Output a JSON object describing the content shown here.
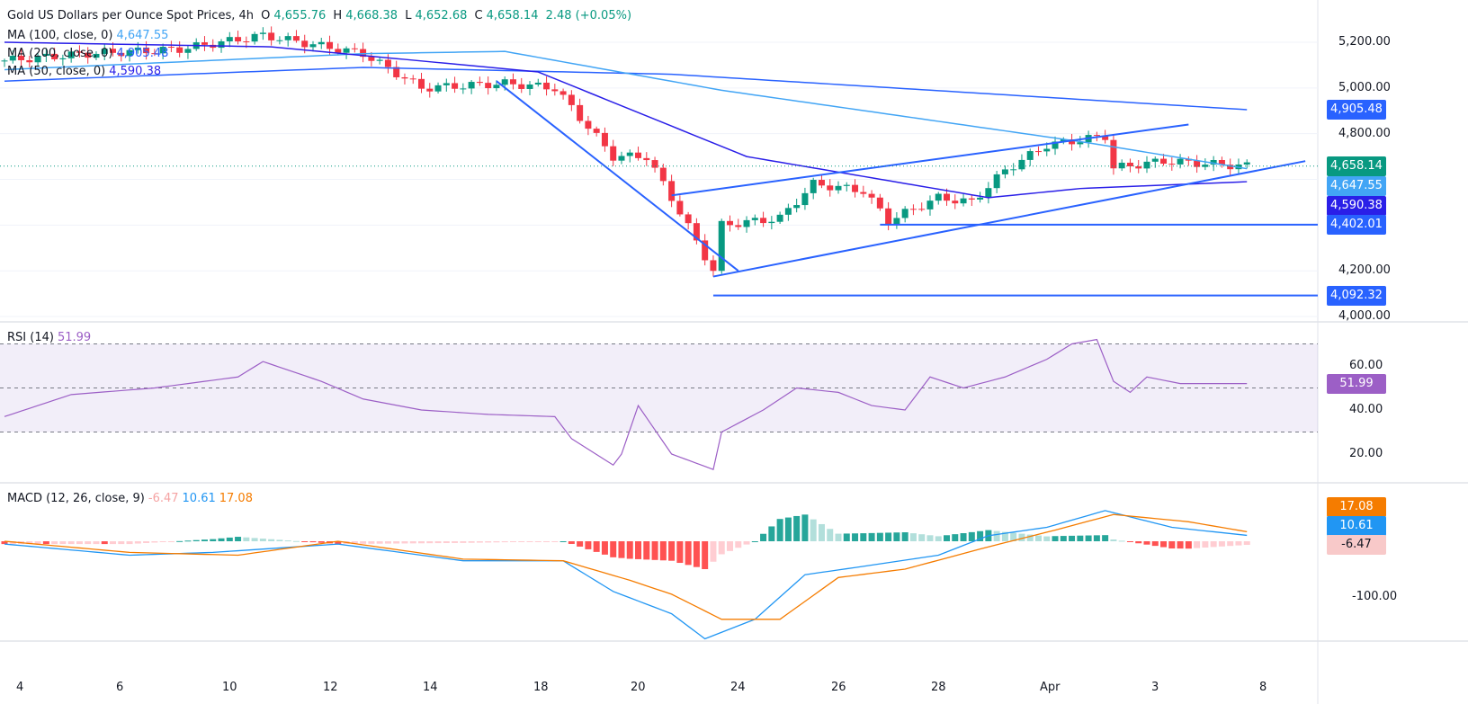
{
  "header": {
    "title": "Gold US Dollars per Ounce Spot Prices, 4h",
    "o_label": "O",
    "o": "4,655.76",
    "h_label": "H",
    "h": "4,668.38",
    "l_label": "L",
    "l": "4,652.68",
    "c_label": "C",
    "c": "4,658.14",
    "change": "2.48 (+0.05%)"
  },
  "ma_legends": [
    {
      "label": "MA (100, close, 0)",
      "value": "4,647.55",
      "color": "#42a5f5"
    },
    {
      "label": "MA (200, close, 0)",
      "value": "4,905.48",
      "color": "#2962ff"
    },
    {
      "label": "MA (50, close, 0)",
      "value": "4,590.38",
      "color": "#2a1fe8"
    }
  ],
  "rsi_legend": {
    "label": "RSI (14)",
    "value": "51.99"
  },
  "macd_legend": {
    "label": "MACD (12, 26, close, 9)",
    "hist": "-6.47",
    "macd": "10.61",
    "signal": "17.08"
  },
  "chart_data": {
    "type": "candlestick",
    "price_axis": {
      "ticks": [
        "5,200.00",
        "5,000.00",
        "4,800.00",
        "4,200.00",
        "4,000.00"
      ],
      "tick_values": [
        5200,
        5000,
        4800,
        4200,
        4000
      ],
      "range": [
        4000,
        5200
      ]
    },
    "price_labels": [
      {
        "text": "4,905.48",
        "value": 4905.48,
        "color": "#2962ff"
      },
      {
        "text": "4,658.14",
        "value": 4658.14,
        "color": "#089981"
      },
      {
        "text": "4,647.55",
        "value": 4647.55,
        "color": "#42a5f5"
      },
      {
        "text": "4,590.38",
        "value": 4590.38,
        "color": "#2a1fe8"
      },
      {
        "text": "4,402.01",
        "value": 4402.01,
        "color": "#2962ff"
      },
      {
        "text": "4,092.32",
        "value": 4092.32,
        "color": "#2962ff"
      }
    ],
    "x_ticks": [
      "4",
      "6",
      "10",
      "12",
      "14",
      "18",
      "20",
      "24",
      "26",
      "28",
      "Apr",
      "3",
      "8"
    ],
    "candle_count": 150,
    "price_keypoints": [
      [
        0,
        5120
      ],
      [
        10,
        5150
      ],
      [
        21,
        5170
      ],
      [
        31,
        5230
      ],
      [
        43,
        5150
      ],
      [
        50,
        5000
      ],
      [
        60,
        5020
      ],
      [
        66,
        5000
      ],
      [
        73,
        4700
      ],
      [
        77,
        4700
      ],
      [
        80,
        4520
      ],
      [
        85,
        4200
      ],
      [
        86,
        4400
      ],
      [
        93,
        4430
      ],
      [
        97,
        4580
      ],
      [
        103,
        4550
      ],
      [
        106,
        4420
      ],
      [
        112,
        4520
      ],
      [
        116,
        4500
      ],
      [
        120,
        4640
      ],
      [
        125,
        4750
      ],
      [
        132,
        4790
      ],
      [
        133,
        4650
      ],
      [
        139,
        4680
      ],
      [
        149,
        4658
      ]
    ],
    "ma50_keypoints": [
      [
        0,
        5200
      ],
      [
        32,
        5180
      ],
      [
        64,
        5070
      ],
      [
        89,
        4700
      ],
      [
        118,
        4520
      ],
      [
        129,
        4560
      ],
      [
        149,
        4590
      ]
    ],
    "ma100_keypoints": [
      [
        0,
        5080
      ],
      [
        43,
        5150
      ],
      [
        60,
        5160
      ],
      [
        86,
        4990
      ],
      [
        130,
        4760
      ],
      [
        149,
        4647
      ]
    ],
    "ma200_keypoints": [
      [
        0,
        5030
      ],
      [
        43,
        5090
      ],
      [
        80,
        5060
      ],
      [
        149,
        4905
      ]
    ],
    "trendlines": [
      {
        "from": [
          59,
          5030
        ],
        "to": [
          88,
          4200
        ]
      },
      {
        "from": [
          80,
          4530
        ],
        "to": [
          142,
          4840
        ]
      },
      {
        "from": [
          85,
          4175
        ],
        "to": [
          156,
          4680
        ]
      }
    ],
    "horizontal_levels": [
      {
        "from": 105,
        "value": 4402.01
      },
      {
        "from": 85,
        "value": 4092.32
      }
    ],
    "rsi": {
      "ticks": [
        "60.00",
        "40.00",
        "20.00"
      ],
      "tick_values": [
        60,
        40,
        20
      ],
      "bands": [
        70,
        50,
        30
      ],
      "current": "51.99",
      "keypoints": [
        [
          0,
          37
        ],
        [
          8,
          47
        ],
        [
          18,
          50
        ],
        [
          28,
          55
        ],
        [
          31,
          62
        ],
        [
          38,
          53
        ],
        [
          43,
          45
        ],
        [
          50,
          40
        ],
        [
          58,
          38
        ],
        [
          66,
          37
        ],
        [
          68,
          27
        ],
        [
          73,
          15
        ],
        [
          74,
          20
        ],
        [
          76,
          42
        ],
        [
          80,
          20
        ],
        [
          85,
          13
        ],
        [
          86,
          30
        ],
        [
          91,
          40
        ],
        [
          95,
          50
        ],
        [
          100,
          48
        ],
        [
          104,
          42
        ],
        [
          108,
          40
        ],
        [
          111,
          55
        ],
        [
          115,
          50
        ],
        [
          120,
          55
        ],
        [
          125,
          63
        ],
        [
          128,
          70
        ],
        [
          131,
          72
        ],
        [
          133,
          53
        ],
        [
          135,
          48
        ],
        [
          137,
          55
        ],
        [
          141,
          52
        ],
        [
          149,
          52
        ]
      ]
    },
    "macd": {
      "ticks": [
        "-100.00"
      ],
      "tick_values": [
        -100
      ],
      "labels": [
        {
          "text": "17.08",
          "color": "#f57c00"
        },
        {
          "text": "10.61",
          "color": "#2196f3"
        },
        {
          "text": "-6.47",
          "color": "#f8c9c9"
        }
      ],
      "macd_keypoints": [
        [
          0,
          -5
        ],
        [
          15,
          -25
        ],
        [
          25,
          -20
        ],
        [
          40,
          -5
        ],
        [
          55,
          -35
        ],
        [
          67,
          -35
        ],
        [
          73,
          -90
        ],
        [
          80,
          -130
        ],
        [
          84,
          -175
        ],
        [
          90,
          -140
        ],
        [
          96,
          -60
        ],
        [
          103,
          -45
        ],
        [
          112,
          -25
        ],
        [
          118,
          10
        ],
        [
          125,
          25
        ],
        [
          132,
          55
        ],
        [
          140,
          25
        ],
        [
          149,
          10.61
        ]
      ],
      "signal_keypoints": [
        [
          0,
          0
        ],
        [
          15,
          -20
        ],
        [
          28,
          -25
        ],
        [
          40,
          0
        ],
        [
          55,
          -32
        ],
        [
          67,
          -35
        ],
        [
          75,
          -70
        ],
        [
          80,
          -95
        ],
        [
          86,
          -140
        ],
        [
          93,
          -140
        ],
        [
          100,
          -65
        ],
        [
          108,
          -50
        ],
        [
          118,
          -10
        ],
        [
          126,
          20
        ],
        [
          133,
          48
        ],
        [
          142,
          35
        ],
        [
          149,
          17.08
        ]
      ]
    }
  }
}
